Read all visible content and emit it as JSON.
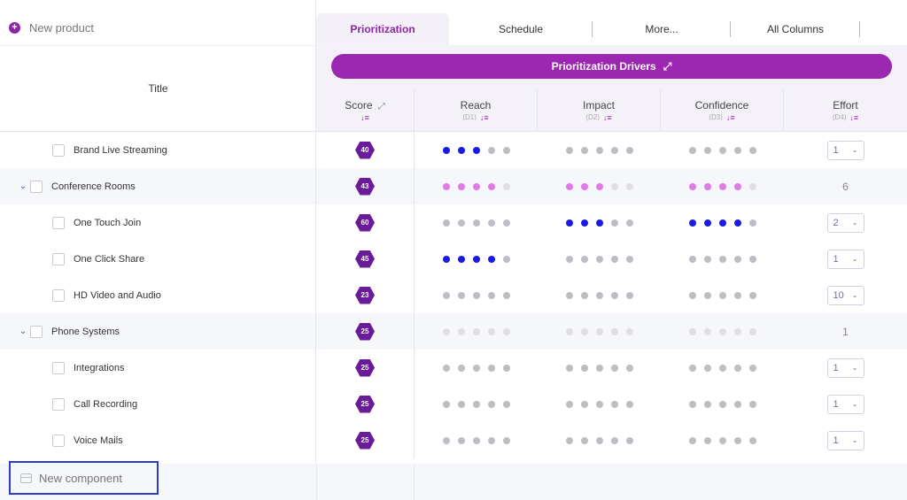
{
  "new_product_label": "New product",
  "title_header": "Title",
  "tabs": [
    {
      "label": "Prioritization"
    },
    {
      "label": "Schedule"
    },
    {
      "label": "More..."
    },
    {
      "label": "All Columns"
    }
  ],
  "drivers_bar_label": "Prioritization Drivers",
  "columns": [
    {
      "name": "Score",
      "sub": ""
    },
    {
      "name": "Reach",
      "sub": "(D1)"
    },
    {
      "name": "Impact",
      "sub": "(D2)"
    },
    {
      "name": "Confidence",
      "sub": "(D3)"
    },
    {
      "name": "Effort",
      "sub": "(D4)"
    }
  ],
  "rows": [
    {
      "title": "Brand Live Streaming",
      "level": "child",
      "score": "40",
      "reach": 3,
      "impact": 0,
      "confidence": 0,
      "effort": "1",
      "effort_type": "select"
    },
    {
      "title": "Conference Rooms",
      "level": "group",
      "score": "43",
      "reach": 4,
      "impact": 3,
      "confidence": 4,
      "effort": "6",
      "effort_type": "static"
    },
    {
      "title": "One Touch Join",
      "level": "child",
      "score": "60",
      "reach": 0,
      "impact": 3,
      "confidence": 4,
      "effort": "2",
      "effort_type": "select"
    },
    {
      "title": "One Click Share",
      "level": "child",
      "score": "45",
      "reach": 4,
      "impact": 0,
      "confidence": 0,
      "effort": "1",
      "effort_type": "select"
    },
    {
      "title": "HD Video and Audio",
      "level": "child",
      "score": "23",
      "reach": 0,
      "impact": 0,
      "confidence": 0,
      "effort": "10",
      "effort_type": "select"
    },
    {
      "title": "Phone Systems",
      "level": "group",
      "score": "25",
      "reach": 0,
      "impact": 0,
      "confidence": 0,
      "effort": "1",
      "effort_type": "static"
    },
    {
      "title": "Integrations",
      "level": "child",
      "score": "25",
      "reach": 0,
      "impact": 0,
      "confidence": 0,
      "effort": "1",
      "effort_type": "select"
    },
    {
      "title": "Call Recording",
      "level": "child",
      "score": "25",
      "reach": 0,
      "impact": 0,
      "confidence": 0,
      "effort": "1",
      "effort_type": "select"
    },
    {
      "title": "Voice Mails",
      "level": "child",
      "score": "25",
      "reach": 0,
      "impact": 0,
      "confidence": 0,
      "effort": "1",
      "effort_type": "select"
    }
  ],
  "new_component_placeholder": "New component",
  "colors": {
    "accent": "#9c27b0",
    "score_hex": "#6a1b9a",
    "dot_on": "#1a1ae0",
    "dot_group": "#e07ae8",
    "focus_border": "#2e3bc7"
  }
}
